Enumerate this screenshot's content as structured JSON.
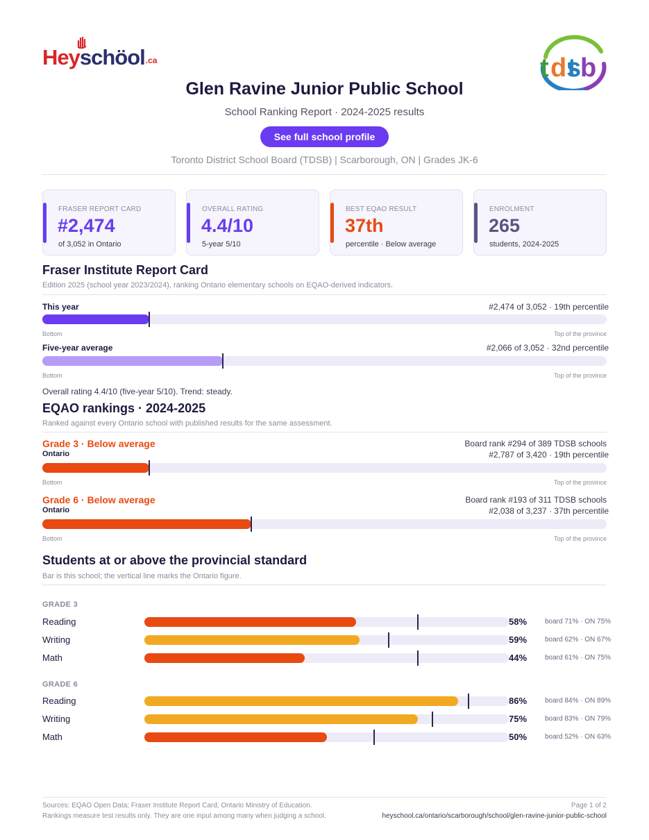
{
  "brand": {
    "left_logo": "HeySchool.ca",
    "right_logo": "tdsb"
  },
  "header": {
    "title": "Glen Ravine Junior Public School",
    "subtitle": "School Ranking Report  ·  2024-2025 results",
    "button": "See full school profile",
    "meta": "Toronto District School Board (TDSB)  |  Scarborough, ON  |  Grades JK-6"
  },
  "cards": [
    {
      "label": "FRASER REPORT CARD",
      "value": "#2,474",
      "sub": "of 3,052 in Ontario",
      "color": "#6a3bf0"
    },
    {
      "label": "OVERALL RATING",
      "value": "4.4/10",
      "sub": "5-year 5/10",
      "color": "#6a3bf0"
    },
    {
      "label": "BEST EQAO RESULT",
      "value": "37th",
      "sub": "percentile  ·  Below average",
      "color": "#e84a12"
    },
    {
      "label": "ENROLMENT",
      "value": "265",
      "sub": "students, 2024-2025",
      "color": "#5b5582"
    }
  ],
  "fraser": {
    "heading": "Fraser Institute Report Card",
    "note": "Edition 2025 (school year 2023/2024), ranking Ontario elementary schools on EQAO-derived indicators.",
    "rows": [
      {
        "label": "This year",
        "right": "#2,474 of 3,052  ·  19th percentile",
        "percentile": 19,
        "color": "#6a3bf0"
      },
      {
        "label": "Five-year average",
        "right": "#2,066 of 3,052  ·  32nd percentile",
        "percentile": 32,
        "color": "#b79cf7"
      }
    ],
    "axis_left": "Bottom",
    "axis_right": "Top of the province",
    "summary": "Overall rating 4.4/10 (five-year 5/10). Trend: steady."
  },
  "eqao": {
    "heading": "EQAO rankings  ·  2024-2025",
    "note": "Ranked against every Ontario school with published results for the same assessment.",
    "rows": [
      {
        "grade": "Grade 3  ·  Below average",
        "board": "Board rank #294 of 389 TDSB schools",
        "label": "Ontario",
        "right": "#2,787 of 3,420  ·  19th percentile",
        "percentile": 19,
        "color": "#e84a12"
      },
      {
        "grade": "Grade 6  ·  Below average",
        "board": "Board rank #193 of 311 TDSB schools",
        "label": "Ontario",
        "right": "#2,038 of 3,237  ·  37th percentile",
        "percentile": 37,
        "color": "#e84a12"
      }
    ],
    "axis_left": "Bottom",
    "axis_right": "Top of the province"
  },
  "students": {
    "heading": "Students at or above the provincial standard",
    "note": "Bar is this school; the vertical line marks the Ontario figure.",
    "groups": [
      {
        "name": "GRADE 3",
        "rows": [
          {
            "subject": "Reading",
            "pct": 58,
            "label": "58%",
            "ontario": 75,
            "cmp": "board 71%  ·  ON 75%",
            "color": "#e84a12"
          },
          {
            "subject": "Writing",
            "pct": 59,
            "label": "59%",
            "ontario": 67,
            "cmp": "board 62%  ·  ON 67%",
            "color": "#f2a922"
          },
          {
            "subject": "Math",
            "pct": 44,
            "label": "44%",
            "ontario": 75,
            "cmp": "board 61%  ·  ON 75%",
            "color": "#e84a12"
          }
        ]
      },
      {
        "name": "GRADE 6",
        "rows": [
          {
            "subject": "Reading",
            "pct": 86,
            "label": "86%",
            "ontario": 89,
            "cmp": "board 84%  ·  ON 89%",
            "color": "#f2a922"
          },
          {
            "subject": "Writing",
            "pct": 75,
            "label": "75%",
            "ontario": 79,
            "cmp": "board 83%  ·  ON 79%",
            "color": "#f2a922"
          },
          {
            "subject": "Math",
            "pct": 50,
            "label": "50%",
            "ontario": 63,
            "cmp": "board 52%  ·  ON 63%",
            "color": "#e84a12"
          }
        ]
      }
    ]
  },
  "footer": {
    "sources": "Sources: EQAO Open Data; Fraser Institute Report Card; Ontario Ministry of Education.",
    "disclaimer": "Rankings measure test results only. They are one input among many when judging a school.",
    "page": "Page 1 of 2",
    "url": "heyschool.ca/ontario/scarborough/school/glen-ravine-junior-public-school"
  }
}
